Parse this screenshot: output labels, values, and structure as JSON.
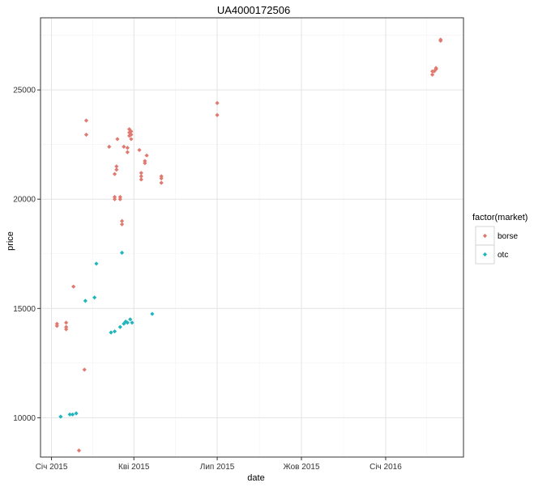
{
  "chart_data": {
    "type": "scatter",
    "title": "UA4000172506",
    "xlabel": "date",
    "ylabel": "price",
    "x_ticks": [
      {
        "date": "2015-01-01",
        "label": "Січ 2015"
      },
      {
        "date": "2015-04-01",
        "label": "Кві 2015"
      },
      {
        "date": "2015-07-01",
        "label": "Лип 2015"
      },
      {
        "date": "2015-10-01",
        "label": "Жов 2015"
      },
      {
        "date": "2016-01-01",
        "label": "Січ 2016"
      }
    ],
    "y_ticks": [
      10000,
      15000,
      20000,
      25000
    ],
    "xlim": [
      "2014-12-20",
      "2016-03-26"
    ],
    "ylim": [
      8200,
      28300
    ],
    "grid": true,
    "legend": {
      "title": "factor(market)",
      "position": "right"
    },
    "series": [
      {
        "name": "borse",
        "color": "#E07A70",
        "points": [
          {
            "x": "2015-01-07",
            "y": 14300
          },
          {
            "x": "2015-01-07",
            "y": 14200
          },
          {
            "x": "2015-01-17",
            "y": 14350
          },
          {
            "x": "2015-01-17",
            "y": 14150
          },
          {
            "x": "2015-01-17",
            "y": 14050
          },
          {
            "x": "2015-01-25",
            "y": 16000
          },
          {
            "x": "2015-01-31",
            "y": 8500
          },
          {
            "x": "2015-02-08",
            "y": 23600
          },
          {
            "x": "2015-02-08",
            "y": 22950
          },
          {
            "x": "2015-02-06",
            "y": 12200
          },
          {
            "x": "2015-03-05",
            "y": 22400
          },
          {
            "x": "2015-03-11",
            "y": 20100
          },
          {
            "x": "2015-03-11",
            "y": 20000
          },
          {
            "x": "2015-03-11",
            "y": 21150
          },
          {
            "x": "2015-03-13",
            "y": 21500
          },
          {
            "x": "2015-03-13",
            "y": 21350
          },
          {
            "x": "2015-03-14",
            "y": 22750
          },
          {
            "x": "2015-03-17",
            "y": 20100
          },
          {
            "x": "2015-03-17",
            "y": 20000
          },
          {
            "x": "2015-03-19",
            "y": 19000
          },
          {
            "x": "2015-03-19",
            "y": 18850
          },
          {
            "x": "2015-03-21",
            "y": 22400
          },
          {
            "x": "2015-03-25",
            "y": 22350
          },
          {
            "x": "2015-03-25",
            "y": 22150
          },
          {
            "x": "2015-03-27",
            "y": 23200
          },
          {
            "x": "2015-03-27",
            "y": 23050
          },
          {
            "x": "2015-03-27",
            "y": 22900
          },
          {
            "x": "2015-03-29",
            "y": 23100
          },
          {
            "x": "2015-03-29",
            "y": 22950
          },
          {
            "x": "2015-03-29",
            "y": 22750
          },
          {
            "x": "2015-04-07",
            "y": 22250
          },
          {
            "x": "2015-04-09",
            "y": 21200
          },
          {
            "x": "2015-04-09",
            "y": 21050
          },
          {
            "x": "2015-04-09",
            "y": 20900
          },
          {
            "x": "2015-04-13",
            "y": 21750
          },
          {
            "x": "2015-04-13",
            "y": 21650
          },
          {
            "x": "2015-04-15",
            "y": 22000
          },
          {
            "x": "2015-05-01",
            "y": 21050
          },
          {
            "x": "2015-05-01",
            "y": 20950
          },
          {
            "x": "2015-05-01",
            "y": 20750
          },
          {
            "x": "2015-07-01",
            "y": 24400
          },
          {
            "x": "2015-07-01",
            "y": 23850
          },
          {
            "x": "2016-02-21",
            "y": 25850
          },
          {
            "x": "2016-02-21",
            "y": 25700
          },
          {
            "x": "2016-02-23",
            "y": 25850
          },
          {
            "x": "2016-02-25",
            "y": 26000
          },
          {
            "x": "2016-02-25",
            "y": 25950
          },
          {
            "x": "2016-03-01",
            "y": 27300
          },
          {
            "x": "2016-03-01",
            "y": 27250
          }
        ]
      },
      {
        "name": "otc",
        "color": "#22B5BE",
        "points": [
          {
            "x": "2015-01-11",
            "y": 10050
          },
          {
            "x": "2015-01-21",
            "y": 10150
          },
          {
            "x": "2015-01-24",
            "y": 10150
          },
          {
            "x": "2015-01-28",
            "y": 10200
          },
          {
            "x": "2015-02-07",
            "y": 15350
          },
          {
            "x": "2015-02-17",
            "y": 15500
          },
          {
            "x": "2015-02-19",
            "y": 17050
          },
          {
            "x": "2015-03-07",
            "y": 13900
          },
          {
            "x": "2015-03-11",
            "y": 13950
          },
          {
            "x": "2015-03-17",
            "y": 14150
          },
          {
            "x": "2015-03-19",
            "y": 17550
          },
          {
            "x": "2015-03-21",
            "y": 14300
          },
          {
            "x": "2015-03-23",
            "y": 14400
          },
          {
            "x": "2015-03-25",
            "y": 14350
          },
          {
            "x": "2015-03-28",
            "y": 14500
          },
          {
            "x": "2015-03-30",
            "y": 14350
          },
          {
            "x": "2015-04-21",
            "y": 14750
          }
        ]
      }
    ]
  }
}
